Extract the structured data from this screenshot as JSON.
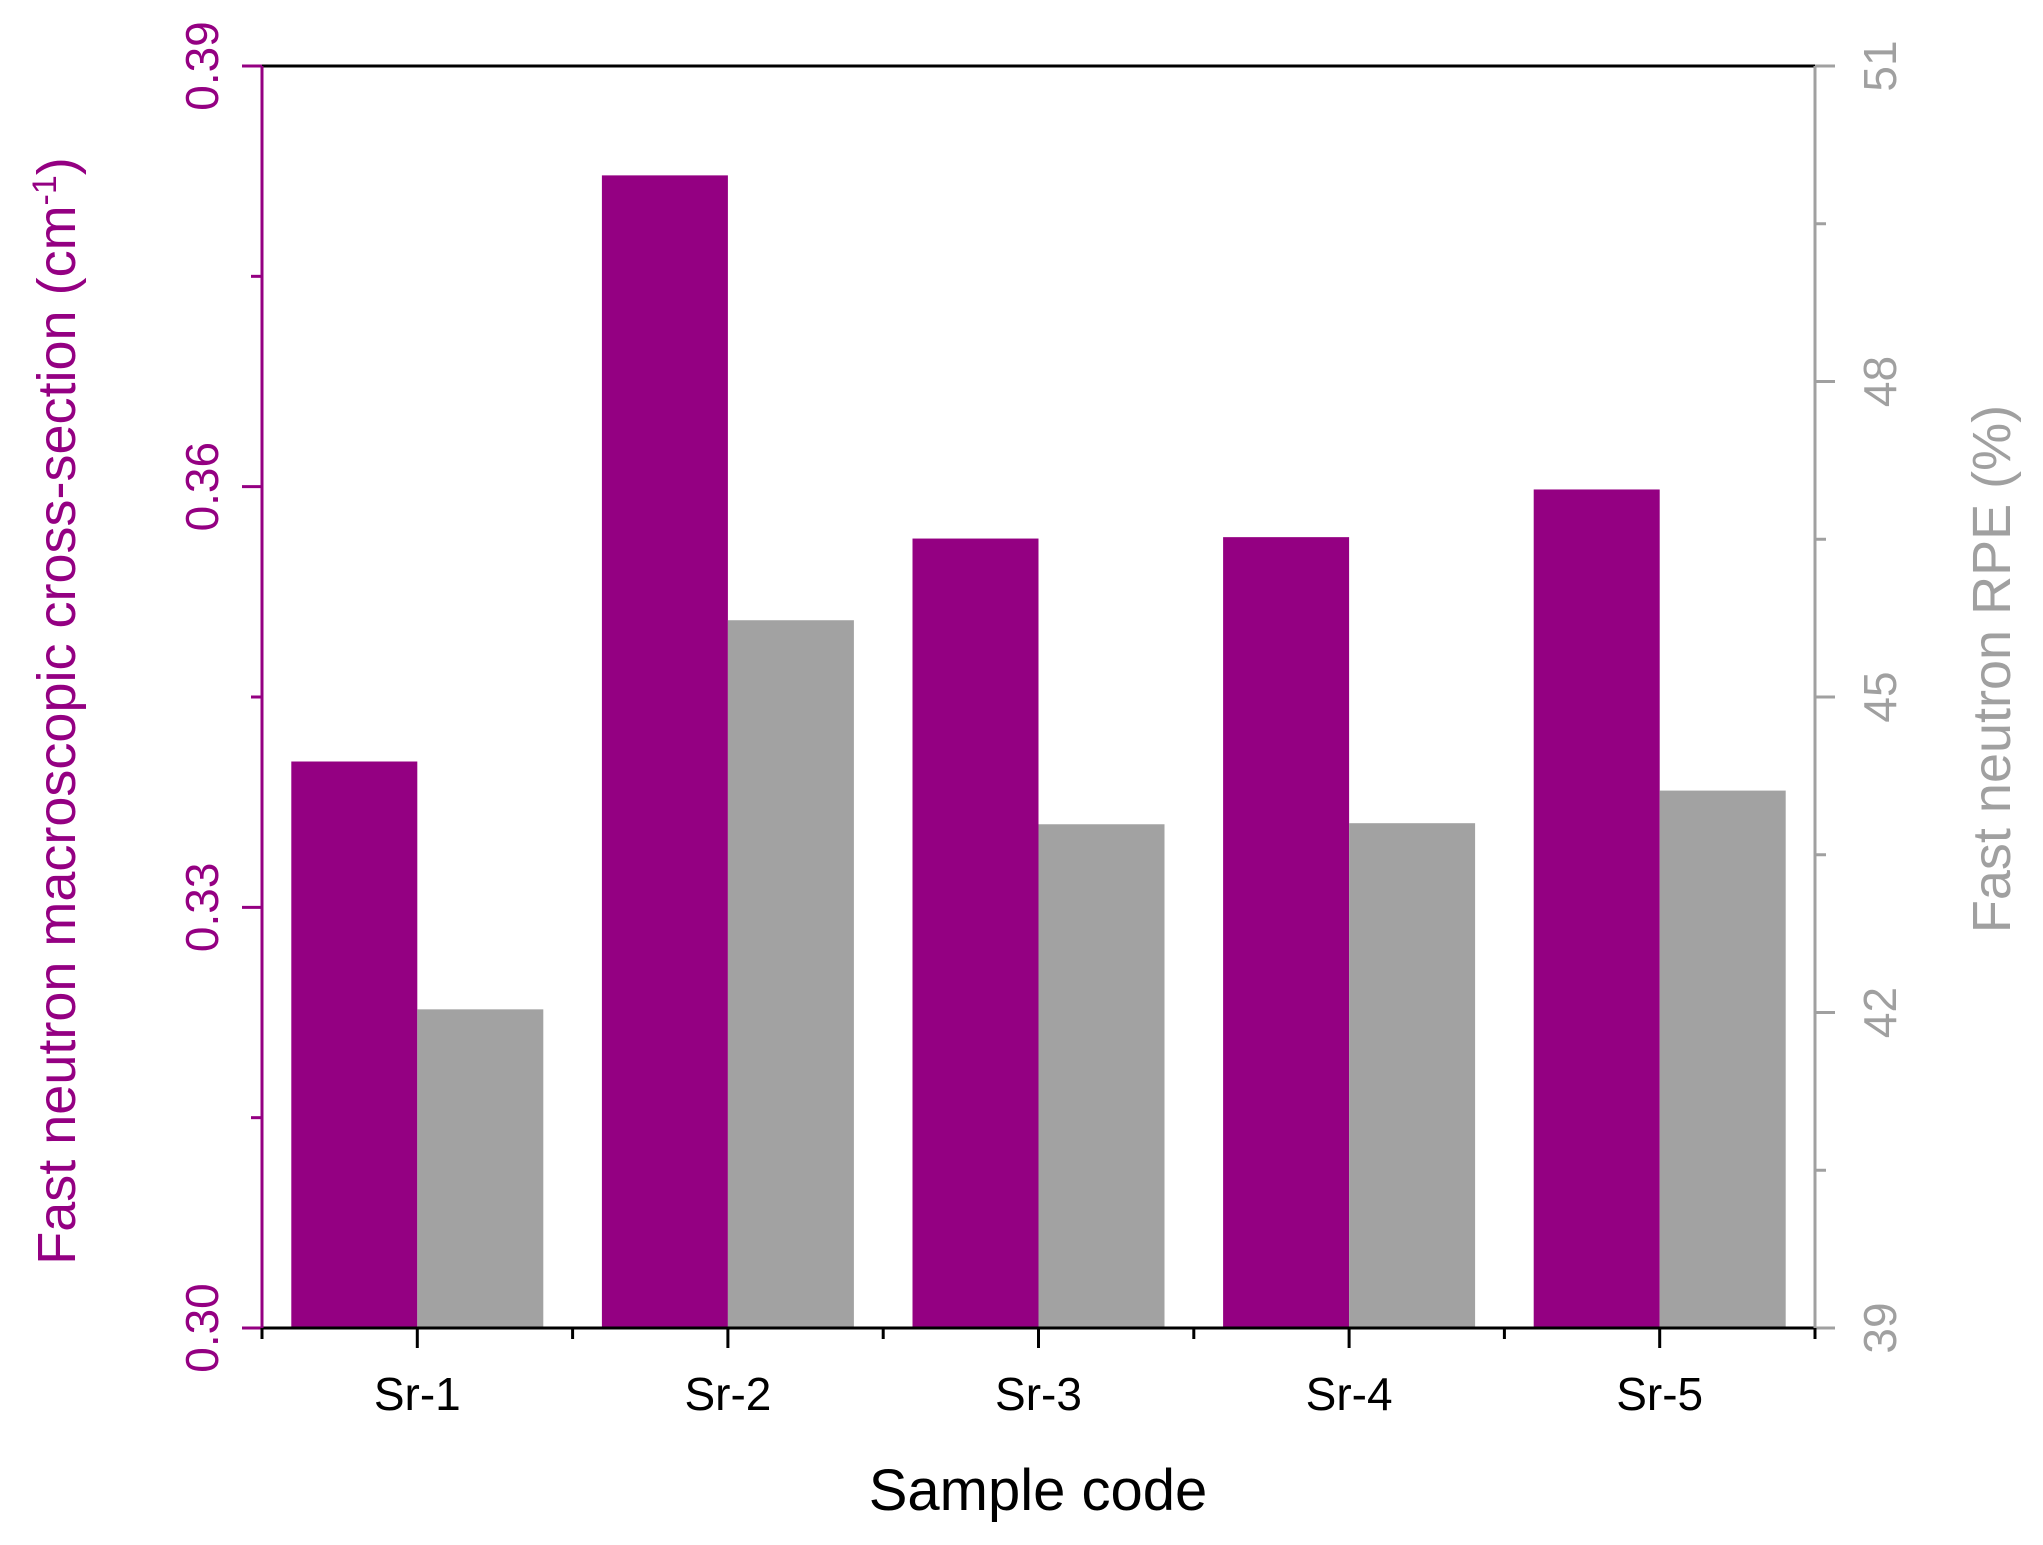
{
  "chart_data": {
    "type": "bar",
    "xlabel": "Sample code",
    "categories": [
      "Sr-1",
      "Sr-2",
      "Sr-3",
      "Sr-4",
      "Sr-5"
    ],
    "left_axis": {
      "label_main": "Fast neutron macroscopic cross-section (cm",
      "label_sup": "-1",
      "label_end": ")",
      "range": [
        0.3,
        0.39
      ],
      "ticks": [
        "0.30",
        "0.33",
        "0.36",
        "0.39"
      ],
      "color": "#940082"
    },
    "right_axis": {
      "label": "Fast neutron RPE (%)",
      "range": [
        39,
        51
      ],
      "ticks": [
        "39",
        "42",
        "45",
        "48",
        "51"
      ],
      "color": "#a0a0a0"
    },
    "series": [
      {
        "axis": "left",
        "color": "#940082",
        "values": [
          0.3404,
          0.3822,
          0.3563,
          0.3564,
          0.3598
        ]
      },
      {
        "axis": "right",
        "color": "#a2a2a2",
        "values": [
          42.03,
          45.73,
          43.79,
          43.8,
          44.11
        ]
      }
    ]
  }
}
